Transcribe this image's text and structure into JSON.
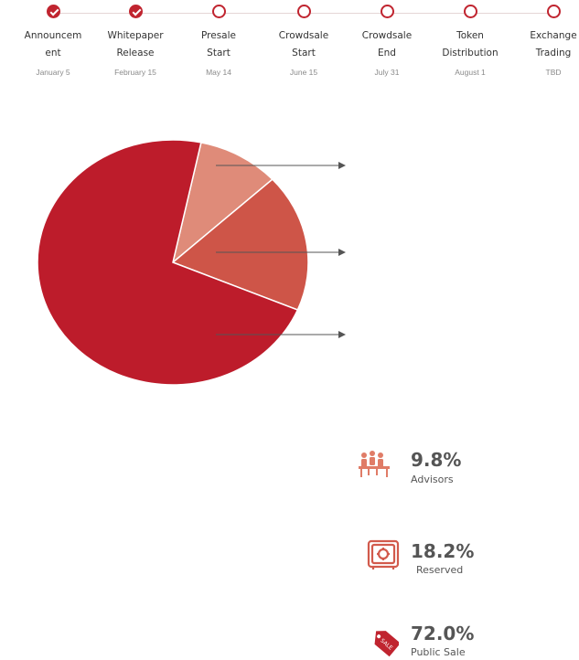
{
  "timeline": {
    "steps": [
      {
        "label": "Announcement",
        "date": "January 5",
        "done": true
      },
      {
        "label": "Whitepaper Release",
        "date": "February 15",
        "done": true
      },
      {
        "label": "Presale Start",
        "date": "May 14",
        "done": false
      },
      {
        "label": "Crowdsale Start",
        "date": "June 15",
        "done": false
      },
      {
        "label": "Crowdsale End",
        "date": "July 31",
        "done": false
      },
      {
        "label": "Token Distribution",
        "date": "August 1",
        "done": false
      },
      {
        "label": "Exchange Trading",
        "date": "TBD",
        "done": false
      }
    ]
  },
  "chart_data": {
    "type": "pie",
    "title": "",
    "slices": [
      {
        "name": "Advisors",
        "value": 9.8,
        "value_label": "9.8%",
        "color": "#df8b79",
        "icon": "team-meeting-icon"
      },
      {
        "name": "Reserved",
        "value": 18.2,
        "value_label": "18.2%",
        "color": "#ce5548",
        "icon": "safe-vault-icon"
      },
      {
        "name": "Public Sale",
        "value": 72.0,
        "value_label": "72.0%",
        "color": "#bd1c2b",
        "icon": "sale-tag-icon"
      }
    ],
    "legend_placement": "right"
  }
}
